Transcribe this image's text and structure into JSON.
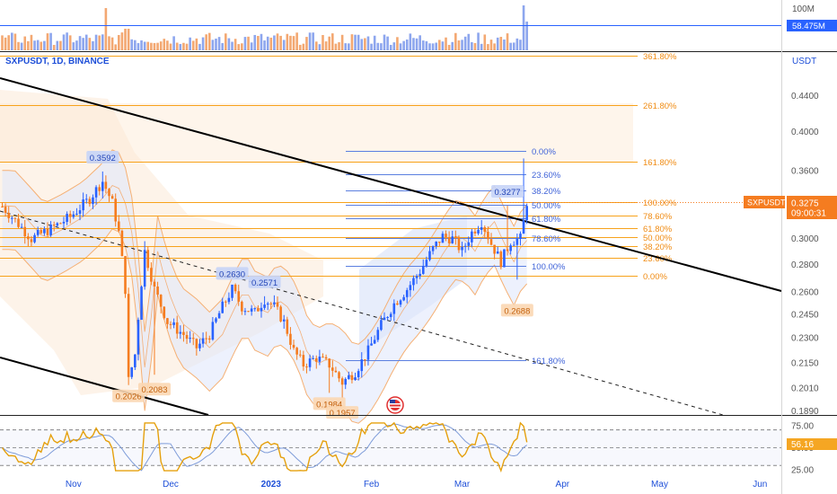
{
  "symbol_line": "SXPUSDT, 1D, BINANCE",
  "currency_label": "USDT",
  "colors": {
    "up": "#2962ff",
    "down": "#f57c20",
    "fib_orange": "#f7a21b",
    "fib_blue": "#5b7fe0",
    "trend": "#000000",
    "rsi_line": "#e5a00d",
    "rsi_ma": "#7e9cd9",
    "price_tag": "#f57c20",
    "volume_tag": "#2962ff"
  },
  "volume_panel": {
    "axis_label": "100M",
    "current_label": "58.475M"
  },
  "price_tag": {
    "symbol": "SXPUSDT",
    "price": "0.3275",
    "countdown": "09:00:31"
  },
  "rsi_panel": {
    "tick_labels": [
      "75.00",
      "50.00",
      "25.00"
    ],
    "current_label": "56.16"
  },
  "chart_data": [
    {
      "type": "candlestick",
      "title": "SXPUSDT, 1D, BINANCE",
      "ylabel": "USDT",
      "ylim": [
        0.187,
        0.49
      ],
      "y_scale": "log",
      "y_ticks": [
        "0.4400",
        "0.4000",
        "0.3600",
        "0.3300",
        "0.3000",
        "0.2800",
        "0.2600",
        "0.2450",
        "0.2300",
        "0.2150",
        "0.2010",
        "0.1890"
      ],
      "x_ticks": [
        "Nov",
        "Dec",
        "2023",
        "Feb",
        "Mar",
        "Apr",
        "May",
        "Jun"
      ],
      "grid": false,
      "price_labels": [
        "0.3592",
        "0.2026",
        "0.2083",
        "0.2630",
        "0.2571",
        "0.1984",
        "0.1957",
        "0.3277",
        "0.2688"
      ],
      "fib_levels_orange": [
        "361.80%",
        "261.80%",
        "161.80%",
        "100.00%",
        "78.60%",
        "61.80%",
        "50.00%",
        "38.20%",
        "23.60%",
        "0.00%"
      ],
      "fib_levels_blue": [
        "0.00%",
        "23.60%",
        "38.20%",
        "50.00%",
        "61.80%",
        "78.60%",
        "100.00%",
        "161.80%"
      ],
      "last_price": 0.3275
    },
    {
      "type": "bar",
      "title": "",
      "ylabel": "",
      "ytick_label": "100M",
      "last_value_label": "58.475M"
    },
    {
      "type": "line",
      "title": "",
      "ylim": [
        20,
        85
      ],
      "y_ticks": [
        "75.00",
        "50.00",
        "25.00"
      ],
      "levels": [
        70,
        50,
        30
      ],
      "last_value": 56.16
    }
  ]
}
